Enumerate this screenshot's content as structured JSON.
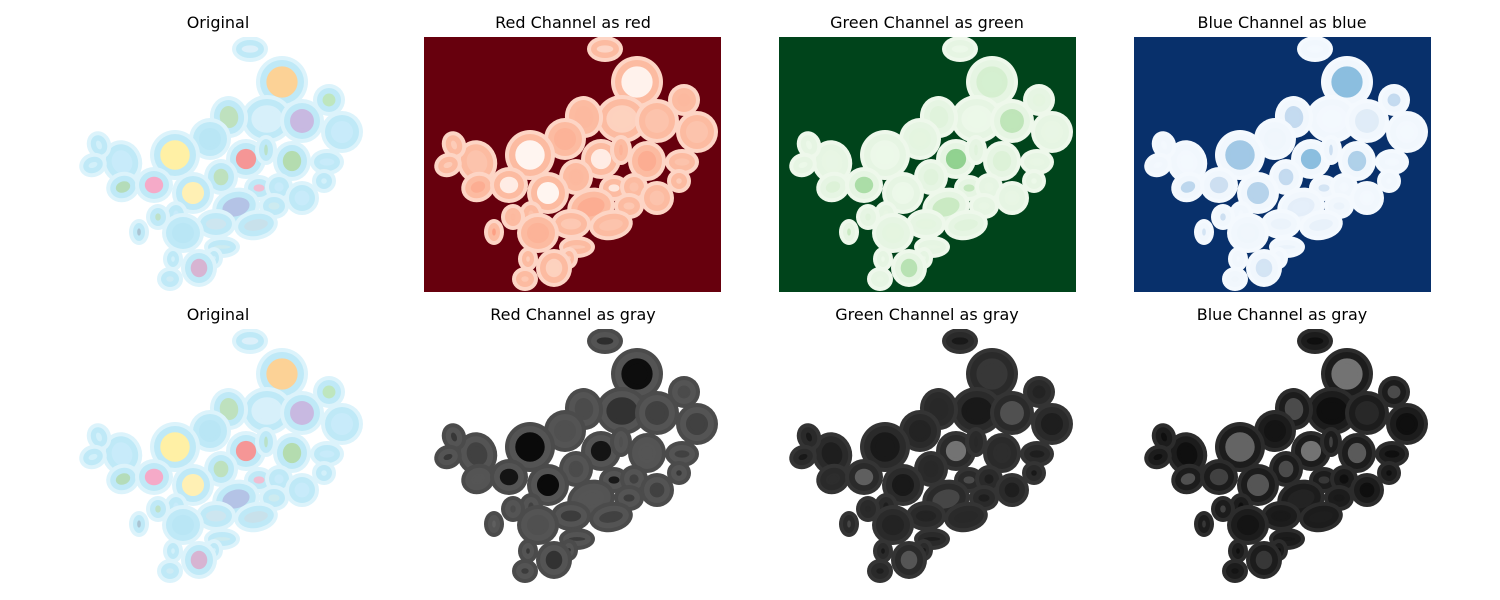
{
  "titles": {
    "r0c0": "Original",
    "r0c1": "Red Channel as red",
    "r0c2": "Green Channel as green",
    "r0c3": "Blue Channel as blue",
    "r1c0": "Original",
    "r1c1": "Red Channel as gray",
    "r1c2": "Green Channel as gray",
    "r1c3": "Blue Channel as gray"
  },
  "colors": {
    "red_bg": "#67000d",
    "green_bg": "#00441b",
    "blue_bg": "#08306b",
    "original_ring": "#bfe9f7"
  },
  "grid": {
    "axes": "off"
  }
}
